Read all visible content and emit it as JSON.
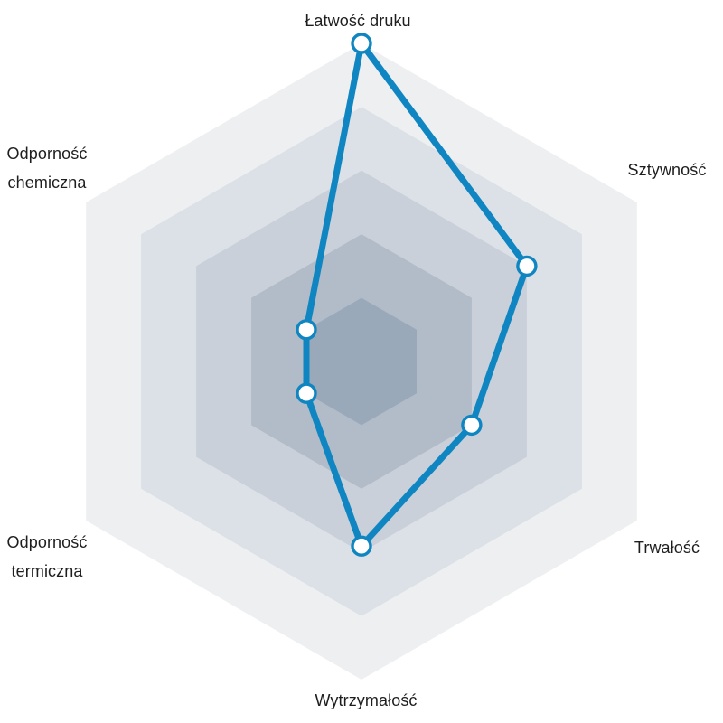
{
  "chart_data": {
    "type": "radar",
    "shape": "hexagon",
    "axes": [
      "Łatwość druku",
      "Sztywność",
      "Trwałość",
      "Wytrzymałość",
      "Odporność termiczna",
      "Odporność chemiczna"
    ],
    "values": [
      5,
      3,
      2,
      2.9,
      1,
      1
    ],
    "max": 5,
    "levels": 5,
    "grid": "filled-hexagon-bands",
    "legend": "none",
    "ring_colors_outer_to_inner": [
      "#edeff1",
      "#dce1e7",
      "#c9d0d9",
      "#b2bcc8",
      "#9aa9b9"
    ],
    "series_color": "#0f86c1",
    "series_line_width": 7,
    "marker": {
      "fill": "#ffffff",
      "stroke": "#0f86c1",
      "radius": 10,
      "stroke_width": 3.4
    }
  },
  "labels": {
    "top": "Łatwość druku",
    "top_right": "Sztywność",
    "bottom_right": "Trwałość",
    "bottom": "Wytrzymałość",
    "bottom_left_line1": "Odporność",
    "bottom_left_line2": "termiczna",
    "top_left_line1": "Odporność",
    "top_left_line2": "chemiczna"
  },
  "colors": {
    "background": "#ffffff",
    "label_text": "#1e1e1e"
  }
}
